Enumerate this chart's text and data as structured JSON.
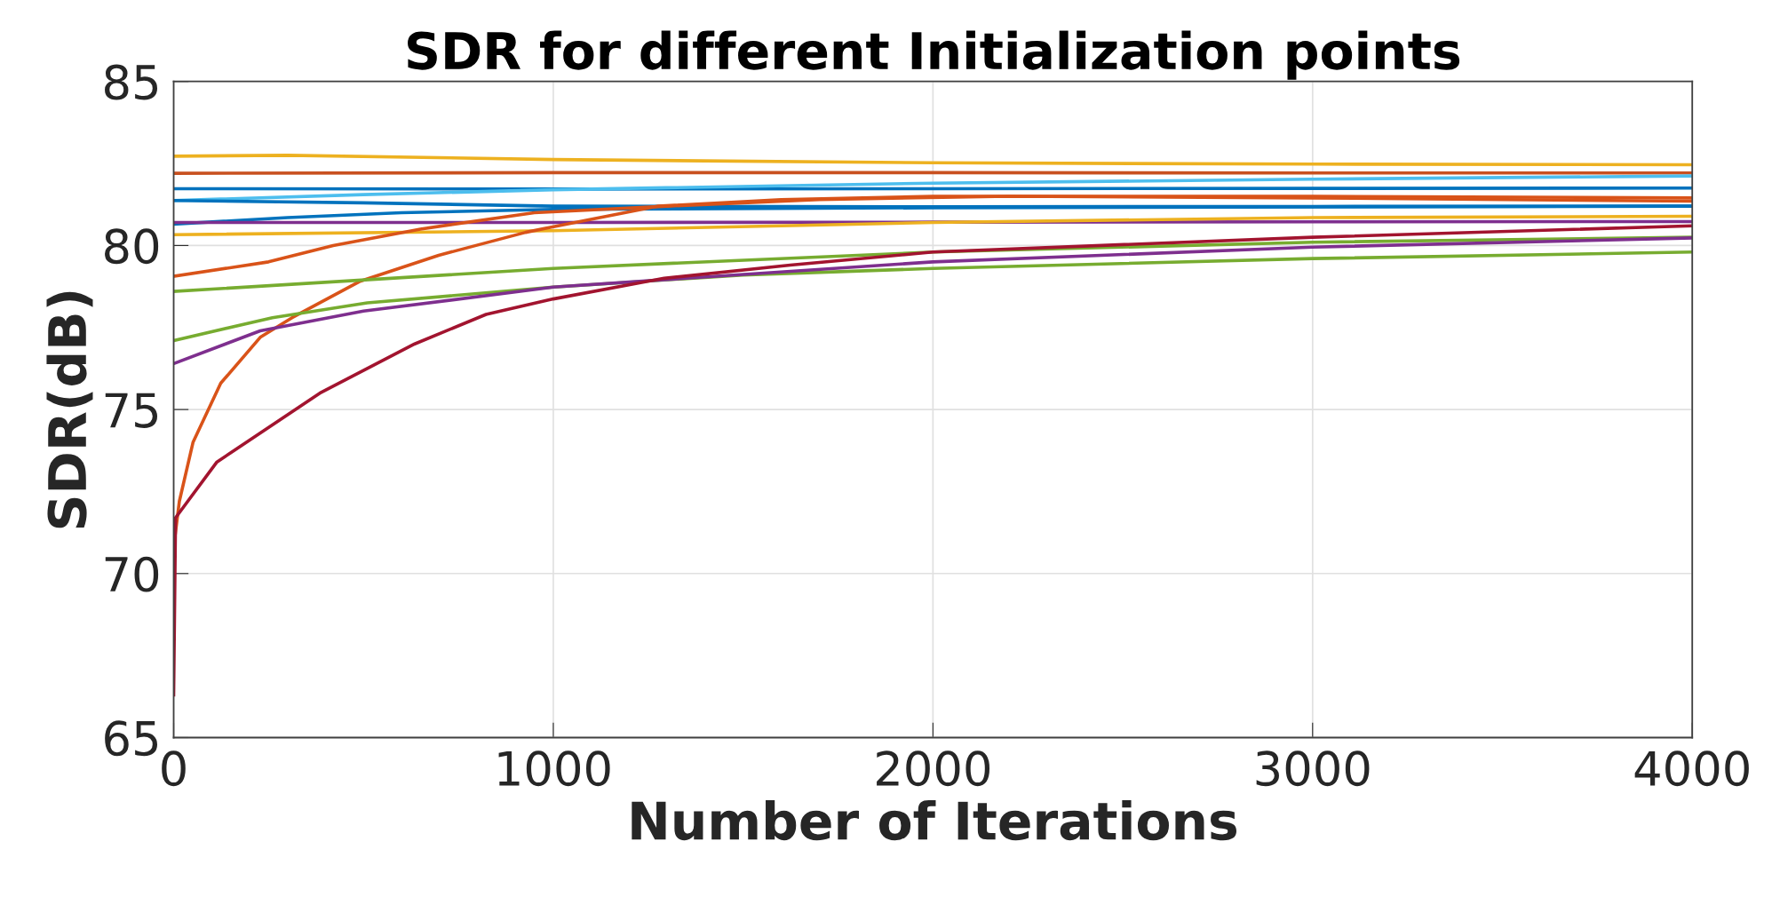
{
  "chart_data": {
    "type": "line",
    "title": "SDR for different Initialization points",
    "xlabel": "Number of Iterations",
    "ylabel": "SDR(dB)",
    "xlim": [
      0,
      4000
    ],
    "ylim": [
      65,
      85
    ],
    "xticks": [
      0,
      1000,
      2000,
      3000,
      4000
    ],
    "yticks": [
      65,
      70,
      75,
      80,
      85
    ],
    "grid": true,
    "marker": "none",
    "line_style": "solid",
    "series": [
      {
        "color": "#edb120",
        "x": [
          0,
          300,
          1000,
          2000,
          3000,
          4000
        ],
        "values": [
          82.72,
          82.75,
          82.62,
          82.52,
          82.48,
          82.46
        ]
      },
      {
        "color": "#c8501f",
        "x": [
          0,
          1000,
          2000,
          3000,
          4000
        ],
        "values": [
          82.2,
          82.22,
          82.22,
          82.21,
          82.21
        ]
      },
      {
        "color": "#0072bd",
        "x": [
          0,
          1000,
          2000,
          3000,
          4000
        ],
        "values": [
          81.73,
          81.72,
          81.73,
          81.74,
          81.75
        ]
      },
      {
        "color": "#4dbeee",
        "x": [
          0,
          500,
          1000,
          2000,
          3000,
          4000
        ],
        "values": [
          81.37,
          81.55,
          81.7,
          81.9,
          82.02,
          82.12
        ]
      },
      {
        "color": "#0072bd",
        "x": [
          0,
          500,
          1000,
          2000,
          3000,
          4000
        ],
        "values": [
          81.37,
          81.3,
          81.2,
          81.18,
          81.19,
          81.2
        ]
      },
      {
        "color": "#0072bd",
        "x": [
          0,
          300,
          600,
          1000,
          2000,
          4000
        ],
        "values": [
          80.65,
          80.85,
          81.0,
          81.1,
          81.15,
          81.2
        ]
      },
      {
        "color": "#7e2f8e",
        "x": [
          0,
          1000,
          2000,
          3000,
          4000
        ],
        "values": [
          80.7,
          80.7,
          80.71,
          80.72,
          80.73
        ]
      },
      {
        "color": "#edb120",
        "x": [
          0,
          1000,
          2000,
          3000,
          4000
        ],
        "values": [
          80.33,
          80.45,
          80.7,
          80.85,
          80.89
        ]
      },
      {
        "color": "#d95319",
        "x": [
          0,
          250,
          420,
          650,
          950,
          1300,
          1700,
          2200,
          3000,
          4000
        ],
        "values": [
          79.06,
          79.5,
          80.0,
          80.5,
          81.0,
          81.2,
          81.4,
          81.5,
          81.45,
          81.35
        ]
      },
      {
        "color": "#d95319",
        "x": [
          0,
          15,
          51,
          124,
          228,
          312,
          489,
          698,
          927,
          995,
          1277,
          1600,
          2000,
          3000,
          4000
        ],
        "values": [
          70.8,
          72.2,
          74.0,
          75.8,
          77.2,
          77.8,
          78.9,
          79.7,
          80.4,
          80.56,
          81.2,
          81.4,
          81.5,
          81.5,
          81.45
        ]
      },
      {
        "color": "#77ac30",
        "x": [
          0,
          1000,
          2000,
          3000,
          4000
        ],
        "values": [
          78.6,
          79.3,
          79.8,
          80.1,
          80.25
        ]
      },
      {
        "color": "#77ac30",
        "x": [
          0,
          260,
          510,
          1000,
          1500,
          2000,
          3000,
          4000
        ],
        "values": [
          77.1,
          77.8,
          78.25,
          78.73,
          79.1,
          79.3,
          79.6,
          79.8
        ]
      },
      {
        "color": "#7e2f8e",
        "x": [
          0,
          228,
          500,
          1000,
          2000,
          3000,
          4000
        ],
        "values": [
          76.4,
          77.4,
          78.0,
          78.73,
          79.5,
          79.95,
          80.23
        ]
      },
      {
        "color": "#a2142f",
        "x": [
          0,
          5,
          114,
          385,
          635,
          823,
          1000,
          1292,
          1624,
          2000,
          3000,
          4000
        ],
        "values": [
          66.3,
          71.7,
          73.4,
          75.5,
          77.0,
          77.9,
          78.37,
          79.0,
          79.4,
          79.8,
          80.25,
          80.6
        ]
      }
    ]
  }
}
